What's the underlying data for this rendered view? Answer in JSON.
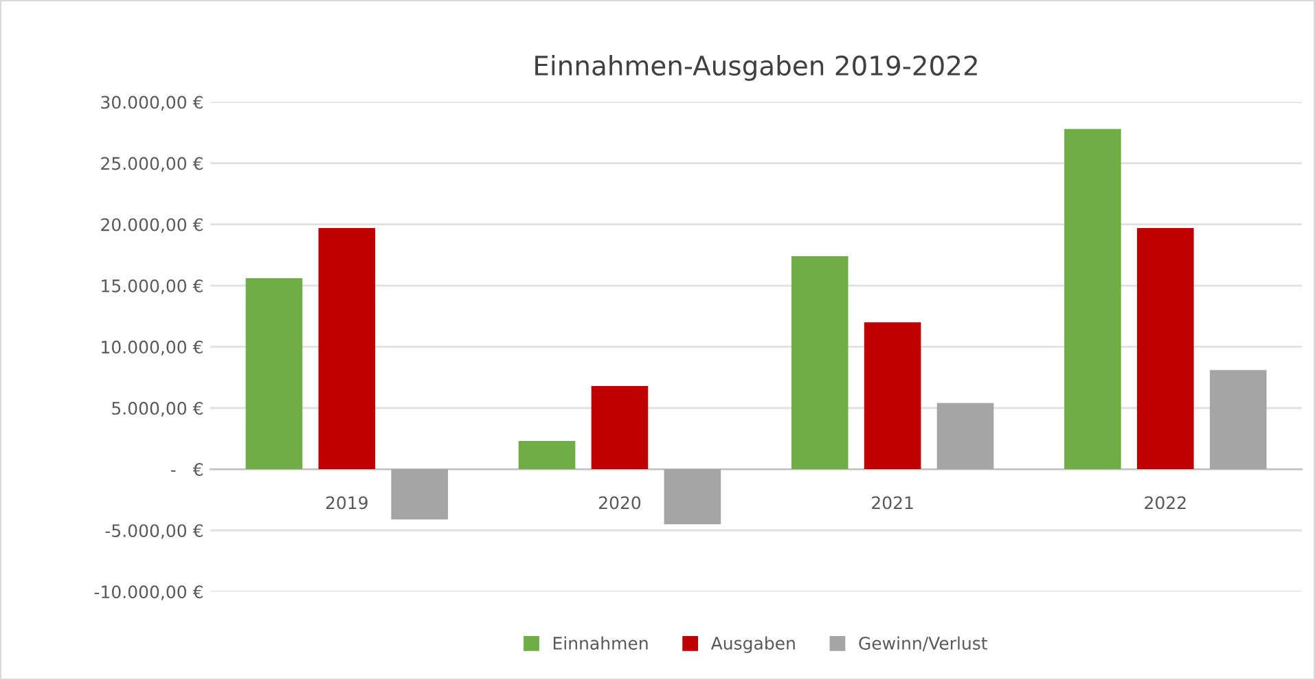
{
  "chart_data": {
    "type": "bar",
    "title": "Einnahmen-Ausgaben 2019-2022",
    "categories": [
      "2019",
      "2020",
      "2021",
      "2022"
    ],
    "series": [
      {
        "name": "Einnahmen",
        "color": "#70ad47",
        "values": [
          15600,
          2300,
          17400,
          27800
        ]
      },
      {
        "name": "Ausgaben",
        "color": "#c00000",
        "values": [
          19700,
          6800,
          12000,
          19700
        ]
      },
      {
        "name": "Gewinn/Verlust",
        "color": "#a5a5a5",
        "values": [
          -4100,
          -4500,
          5400,
          8100
        ]
      }
    ],
    "ylim": [
      -10000,
      30000
    ],
    "yticks": [
      {
        "value": -10000,
        "label": "-10.000,00 €"
      },
      {
        "value": -5000,
        "label": "-5.000,00 €"
      },
      {
        "value": 0,
        "label": "-   €"
      },
      {
        "value": 5000,
        "label": "5.000,00 €"
      },
      {
        "value": 10000,
        "label": "10.000,00 €"
      },
      {
        "value": 15000,
        "label": "15.000,00 €"
      },
      {
        "value": 20000,
        "label": "20.000,00 €"
      },
      {
        "value": 25000,
        "label": "25.000,00 €"
      },
      {
        "value": 30000,
        "label": "30.000,00 €"
      }
    ],
    "grid": "y",
    "legend": "bottom"
  }
}
